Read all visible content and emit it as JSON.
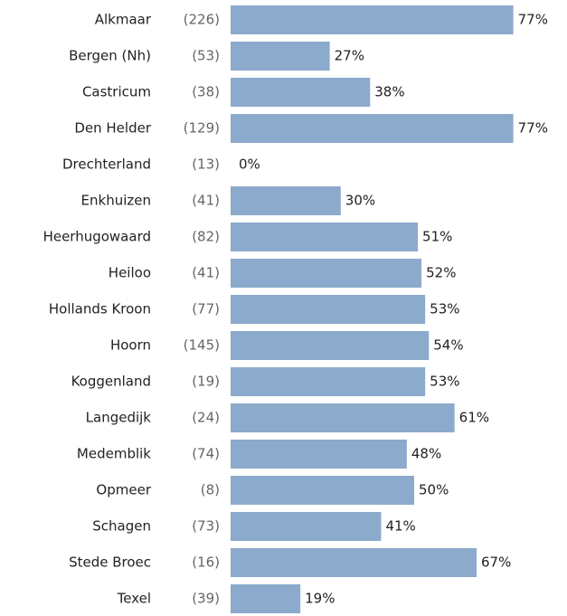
{
  "chart_data": {
    "type": "bar",
    "orientation": "horizontal",
    "categories": [
      "Alkmaar",
      "Bergen (Nh)",
      "Castricum",
      "Den Helder",
      "Drechterland",
      "Enkhuizen",
      "Heerhugowaard",
      "Heiloo",
      "Hollands Kroon",
      "Hoorn",
      "Koggenland",
      "Langedijk",
      "Medemblik",
      "Opmeer",
      "Schagen",
      "Stede Broec",
      "Texel"
    ],
    "counts": [
      "(226)",
      "(53)",
      "(38)",
      "(129)",
      "(13)",
      "(41)",
      "(82)",
      "(41)",
      "(77)",
      "(145)",
      "(19)",
      "(24)",
      "(74)",
      "(8)",
      "(73)",
      "(16)",
      "(39)"
    ],
    "values": [
      77,
      27,
      38,
      77,
      0,
      30,
      51,
      52,
      53,
      54,
      53,
      61,
      48,
      50,
      41,
      67,
      19
    ],
    "value_labels": [
      "77%",
      "27%",
      "38%",
      "77%",
      "0%",
      "30%",
      "51%",
      "52%",
      "53%",
      "54%",
      "53%",
      "61%",
      "48%",
      "50%",
      "41%",
      "67%",
      "19%"
    ],
    "color": "#8caacb"
  }
}
